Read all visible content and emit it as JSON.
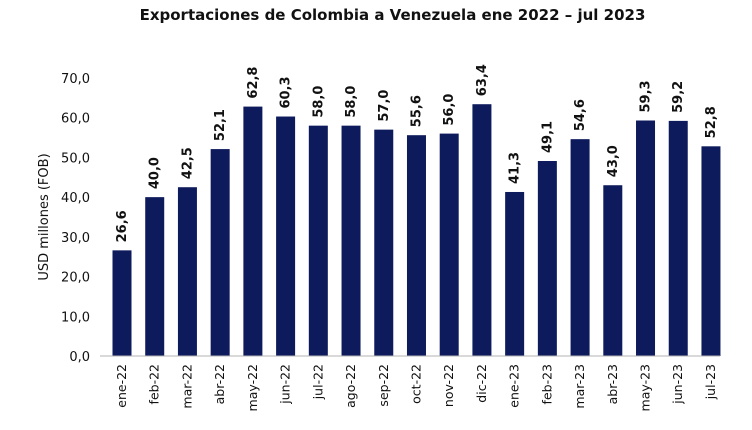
{
  "chart_data": {
    "type": "bar",
    "title": "Exportaciones de Colombia a Venezuela ene 2022 – jul 2023",
    "xlabel": "",
    "ylabel": "USD millones (FOB)",
    "ylim": [
      0,
      70
    ],
    "yticks": [
      "0,0",
      "10,0",
      "20,0",
      "30,0",
      "40,0",
      "50,0",
      "60,0",
      "70,0"
    ],
    "grid": false,
    "legend": "none",
    "bar_color": "#0d1a5c",
    "categories": [
      "ene-22",
      "feb-22",
      "mar-22",
      "abr-22",
      "may-22",
      "jun-22",
      "jul-22",
      "ago-22",
      "sep-22",
      "oct-22",
      "nov-22",
      "dic-22",
      "ene-23",
      "feb-23",
      "mar-23",
      "abr-23",
      "may-23",
      "jun-23",
      "jul-23"
    ],
    "values": [
      26.6,
      40.0,
      42.5,
      52.1,
      62.8,
      60.3,
      58.0,
      58.0,
      57.0,
      55.6,
      56.0,
      63.4,
      41.3,
      49.1,
      54.6,
      43.0,
      59.3,
      59.2,
      52.8
    ],
    "data_labels": [
      "26,6",
      "40,0",
      "42,5",
      "52,1",
      "62,8",
      "60,3",
      "58,0",
      "58,0",
      "57,0",
      "55,6",
      "56,0",
      "63,4",
      "41,3",
      "49,1",
      "54,6",
      "43,0",
      "59,3",
      "59,2",
      "52,8"
    ]
  }
}
